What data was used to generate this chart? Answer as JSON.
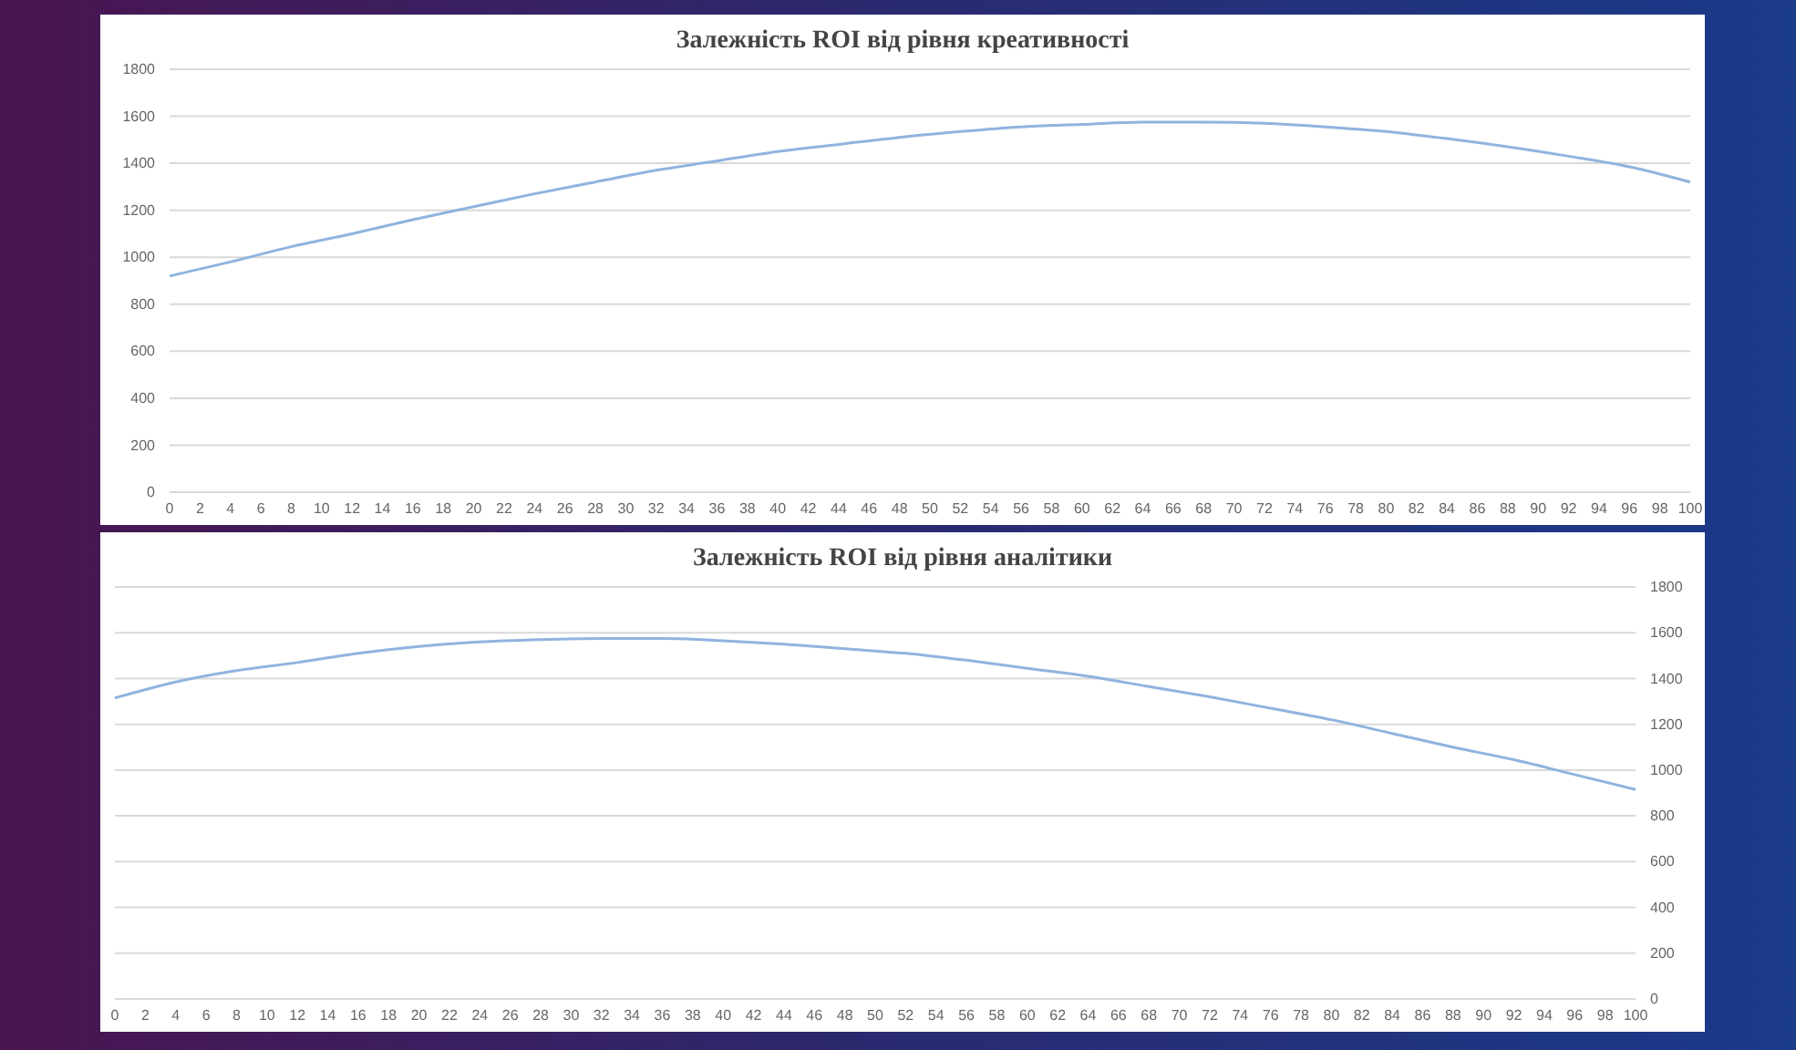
{
  "chart_data": [
    {
      "type": "line",
      "title": "Залежність ROI від рівня креативності",
      "xlim": [
        0,
        100
      ],
      "xticks": [
        0,
        2,
        4,
        6,
        8,
        10,
        12,
        14,
        16,
        18,
        20,
        22,
        24,
        26,
        28,
        30,
        32,
        34,
        36,
        38,
        40,
        42,
        44,
        46,
        48,
        50,
        52,
        54,
        56,
        58,
        60,
        62,
        64,
        66,
        68,
        70,
        72,
        74,
        76,
        78,
        80,
        82,
        84,
        86,
        88,
        90,
        92,
        94,
        96,
        98,
        100
      ],
      "ylim": [
        0,
        1800
      ],
      "yticks": [
        0,
        200,
        400,
        600,
        800,
        1000,
        1200,
        1400,
        1600,
        1800
      ],
      "grid": "y",
      "series": [
        {
          "color": "#8fb4de",
          "x": [
            0,
            4,
            8,
            12,
            16,
            20,
            24,
            28,
            32,
            36,
            40,
            44,
            48,
            52,
            56,
            60,
            64,
            68,
            72,
            76,
            80,
            84,
            88,
            92,
            96,
            100
          ],
          "values": [
            920,
            980,
            1045,
            1100,
            1160,
            1215,
            1270,
            1320,
            1370,
            1410,
            1450,
            1480,
            1510,
            1535,
            1555,
            1565,
            1575,
            1575,
            1570,
            1555,
            1535,
            1505,
            1470,
            1430,
            1385,
            1320
          ]
        }
      ]
    },
    {
      "type": "line",
      "title": "Залежність ROI від рівня аналітики",
      "xlim": [
        0,
        100
      ],
      "xticks": [
        0,
        2,
        4,
        6,
        8,
        10,
        12,
        14,
        16,
        18,
        20,
        22,
        24,
        26,
        28,
        30,
        32,
        34,
        36,
        38,
        40,
        42,
        44,
        46,
        48,
        50,
        52,
        54,
        56,
        58,
        60,
        62,
        64,
        66,
        68,
        70,
        72,
        74,
        76,
        78,
        80,
        82,
        84,
        86,
        88,
        90,
        92,
        94,
        96,
        98,
        100
      ],
      "y2lim": [
        0,
        1800
      ],
      "y2ticks": [
        0,
        200,
        400,
        600,
        800,
        1000,
        1200,
        1400,
        1600,
        1800
      ],
      "grid": "y",
      "series": [
        {
          "color": "#8fb4de",
          "axis": "y2",
          "x": [
            0,
            4,
            8,
            12,
            16,
            20,
            24,
            28,
            32,
            36,
            40,
            44,
            48,
            52,
            56,
            60,
            64,
            68,
            72,
            76,
            80,
            84,
            88,
            92,
            96,
            100
          ],
          "values": [
            1315,
            1385,
            1435,
            1470,
            1510,
            1540,
            1560,
            1570,
            1575,
            1575,
            1565,
            1550,
            1530,
            1510,
            1480,
            1445,
            1410,
            1365,
            1320,
            1270,
            1220,
            1160,
            1100,
            1045,
            980,
            915
          ]
        }
      ]
    }
  ]
}
